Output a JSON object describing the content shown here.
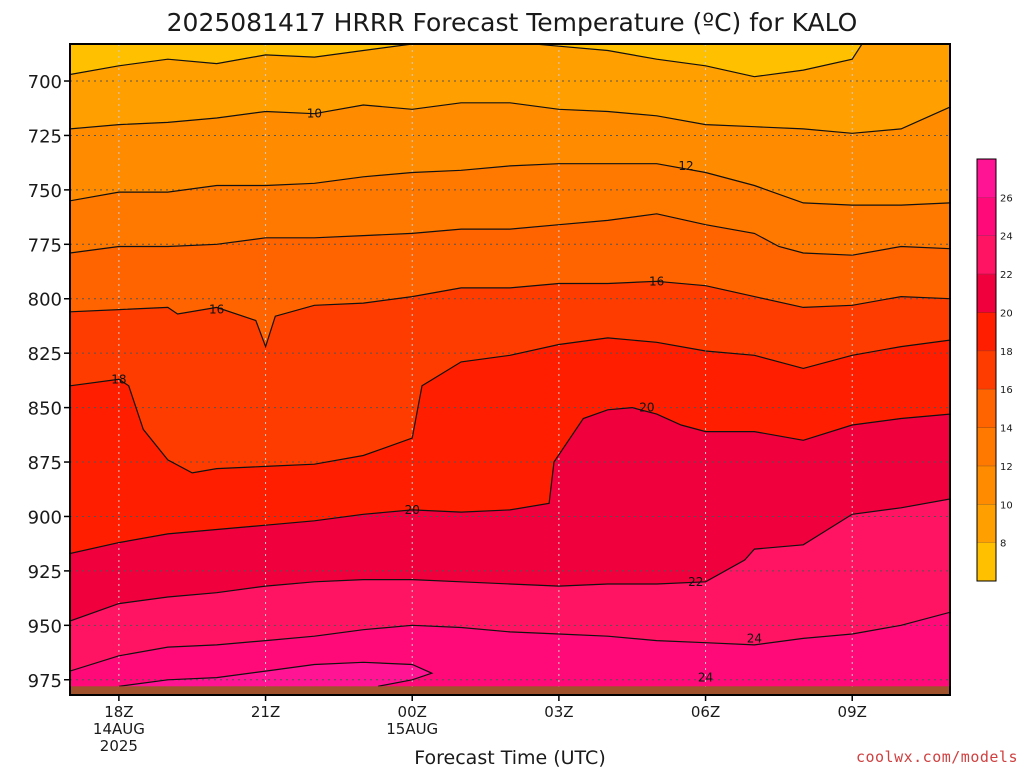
{
  "chart_data": {
    "type": "heatmap",
    "title": "2025081417 HRRR Forecast Temperature (ºC) for KALO",
    "xlabel": "Forecast Time (UTC)",
    "ylabel": "",
    "credit": "coolwx.com/models",
    "x_ticks": [
      {
        "hour": 18,
        "lines": [
          "18Z",
          "14AUG",
          "2025"
        ]
      },
      {
        "hour": 21,
        "lines": [
          "21Z"
        ]
      },
      {
        "hour": 24,
        "lines": [
          "00Z",
          "15AUG"
        ]
      },
      {
        "hour": 27,
        "lines": [
          "03Z"
        ]
      },
      {
        "hour": 30,
        "lines": [
          "06Z"
        ]
      },
      {
        "hour": 33,
        "lines": [
          "09Z"
        ]
      }
    ],
    "xlim": [
      17,
      35
    ],
    "y_ticks": [
      700,
      725,
      750,
      775,
      800,
      825,
      850,
      875,
      900,
      925,
      950,
      975
    ],
    "ylim": [
      982,
      683
    ],
    "colorbar": {
      "levels": [
        6,
        8,
        10,
        12,
        14,
        16,
        18,
        20,
        22,
        24,
        26,
        28
      ],
      "tick_labels": [
        "8",
        "10",
        "12",
        "14",
        "16",
        "18",
        "20",
        "22",
        "24",
        "26"
      ],
      "colors": [
        "#ffc000",
        "#ffa000",
        "#ff8c00",
        "#ff7800",
        "#ff6400",
        "#ff3c00",
        "#ff1e00",
        "#f0003c",
        "#ff1464",
        "#ff0a78",
        "#ff1493"
      ]
    },
    "fill_colors": [
      "#ffc000",
      "#ffa000",
      "#ff8c00",
      "#ff7800",
      "#ff6400",
      "#ff3c00",
      "#ff1e00",
      "#f0003c",
      "#ff1464",
      "#ff0a78",
      "#ff1493"
    ],
    "ground_color": "#a0522d",
    "surface_pressure": 978,
    "contours": [
      {
        "level": 8,
        "points": [
          [
            17,
            697
          ],
          [
            18,
            693
          ],
          [
            19,
            690
          ],
          [
            20,
            692
          ],
          [
            21,
            688
          ],
          [
            22,
            689
          ],
          [
            23,
            686
          ],
          [
            24,
            683
          ],
          [
            26,
            682
          ],
          [
            27,
            684
          ],
          [
            28,
            686
          ],
          [
            29,
            690
          ],
          [
            30,
            693
          ],
          [
            31,
            698
          ],
          [
            32,
            695
          ],
          [
            33,
            690
          ],
          [
            33.2,
            683
          ]
        ]
      },
      {
        "level": 10,
        "points": [
          [
            17,
            722
          ],
          [
            18,
            720
          ],
          [
            19,
            719
          ],
          [
            20,
            717
          ],
          [
            21,
            714
          ],
          [
            22,
            715
          ],
          [
            23,
            711
          ],
          [
            24,
            713
          ],
          [
            25,
            710
          ],
          [
            26,
            710
          ],
          [
            27,
            713
          ],
          [
            28,
            714
          ],
          [
            29,
            716
          ],
          [
            30,
            720
          ],
          [
            31,
            721
          ],
          [
            32,
            722
          ],
          [
            33,
            724
          ],
          [
            34,
            722
          ],
          [
            35,
            712
          ]
        ]
      },
      {
        "level": 12,
        "points": [
          [
            17,
            755
          ],
          [
            18,
            751
          ],
          [
            19,
            751
          ],
          [
            20,
            748
          ],
          [
            21,
            748
          ],
          [
            22,
            747
          ],
          [
            23,
            744
          ],
          [
            24,
            742
          ],
          [
            25,
            741
          ],
          [
            26,
            739
          ],
          [
            27,
            738
          ],
          [
            28,
            738
          ],
          [
            29,
            738
          ],
          [
            30,
            742
          ],
          [
            31,
            748
          ],
          [
            32,
            756
          ],
          [
            33,
            757
          ],
          [
            34,
            757
          ],
          [
            35,
            756
          ]
        ]
      },
      {
        "level": 14,
        "points": [
          [
            17,
            779
          ],
          [
            18,
            776
          ],
          [
            19,
            776
          ],
          [
            20,
            775
          ],
          [
            21,
            772
          ],
          [
            22,
            772
          ],
          [
            23,
            771
          ],
          [
            24,
            770
          ],
          [
            25,
            768
          ],
          [
            26,
            768
          ],
          [
            27,
            766
          ],
          [
            28,
            764
          ],
          [
            29,
            761
          ],
          [
            30,
            766
          ],
          [
            31,
            770
          ],
          [
            31.5,
            776
          ],
          [
            32,
            779
          ],
          [
            33,
            780
          ],
          [
            34,
            776
          ],
          [
            35,
            777
          ]
        ]
      },
      {
        "level": 16,
        "points": [
          [
            17,
            806
          ],
          [
            18,
            805
          ],
          [
            19,
            804
          ],
          [
            19.2,
            807
          ],
          [
            20,
            804
          ],
          [
            20.8,
            810
          ],
          [
            21,
            822
          ],
          [
            21.2,
            808
          ],
          [
            22,
            803
          ],
          [
            23,
            802
          ],
          [
            24,
            799
          ],
          [
            25,
            795
          ],
          [
            26,
            795
          ],
          [
            27,
            793
          ],
          [
            28,
            793
          ],
          [
            29,
            792
          ],
          [
            30,
            794
          ],
          [
            31,
            799
          ],
          [
            32,
            804
          ],
          [
            33,
            803
          ],
          [
            34,
            799
          ],
          [
            35,
            800
          ]
        ]
      },
      {
        "level": 18,
        "points": [
          [
            17,
            840
          ],
          [
            18,
            837
          ],
          [
            18.2,
            840
          ],
          [
            18.5,
            860
          ],
          [
            19,
            874
          ],
          [
            19.5,
            880
          ],
          [
            20,
            878
          ],
          [
            21,
            877
          ],
          [
            22,
            876
          ],
          [
            23,
            872
          ],
          [
            24,
            864
          ],
          [
            24.2,
            840
          ],
          [
            25,
            829
          ],
          [
            26,
            826
          ],
          [
            27,
            821
          ],
          [
            28,
            818
          ],
          [
            29,
            820
          ],
          [
            30,
            824
          ],
          [
            31,
            826
          ],
          [
            32,
            832
          ],
          [
            33,
            826
          ],
          [
            34,
            822
          ],
          [
            35,
            819
          ]
        ]
      },
      {
        "level": 20,
        "points": [
          [
            17,
            917
          ],
          [
            18,
            912
          ],
          [
            19,
            908
          ],
          [
            20,
            906
          ],
          [
            21,
            904
          ],
          [
            22,
            902
          ],
          [
            23,
            899
          ],
          [
            24,
            897
          ],
          [
            25,
            898
          ],
          [
            26,
            897
          ],
          [
            26.8,
            894
          ],
          [
            26.9,
            875
          ],
          [
            27.5,
            855
          ],
          [
            28,
            851
          ],
          [
            28.5,
            850
          ],
          [
            29,
            853
          ],
          [
            29.5,
            858
          ],
          [
            30,
            861
          ],
          [
            31,
            861
          ],
          [
            32,
            865
          ],
          [
            33,
            858
          ],
          [
            34,
            855
          ],
          [
            35,
            853
          ]
        ]
      },
      {
        "level": 22,
        "points": [
          [
            17,
            948
          ],
          [
            18,
            940
          ],
          [
            19,
            937
          ],
          [
            20,
            935
          ],
          [
            21,
            932
          ],
          [
            22,
            930
          ],
          [
            23,
            929
          ],
          [
            24,
            929
          ],
          [
            25,
            930
          ],
          [
            26,
            931
          ],
          [
            27,
            932
          ],
          [
            28,
            931
          ],
          [
            29,
            931
          ],
          [
            30,
            930
          ],
          [
            30.8,
            920
          ],
          [
            31,
            915
          ],
          [
            32,
            913
          ],
          [
            33,
            899
          ],
          [
            34,
            896
          ],
          [
            35,
            892
          ]
        ]
      },
      {
        "level": 24,
        "points": [
          [
            17,
            971
          ],
          [
            18,
            964
          ],
          [
            19,
            960
          ],
          [
            20,
            959
          ],
          [
            21,
            957
          ],
          [
            22,
            955
          ],
          [
            23,
            952
          ],
          [
            24,
            950
          ],
          [
            25,
            951
          ],
          [
            26,
            953
          ],
          [
            27,
            954
          ],
          [
            28,
            955
          ],
          [
            29,
            957
          ],
          [
            30,
            958
          ],
          [
            31,
            959
          ],
          [
            32,
            956
          ],
          [
            33,
            954
          ],
          [
            34,
            950
          ],
          [
            35,
            944
          ]
        ]
      },
      {
        "level": 26,
        "points": [
          [
            18,
            978
          ],
          [
            19,
            975
          ],
          [
            20,
            974
          ],
          [
            21,
            971
          ],
          [
            22,
            968
          ],
          [
            23,
            967
          ],
          [
            24,
            968
          ],
          [
            24.4,
            972
          ],
          [
            24,
            975
          ],
          [
            23.3,
            978
          ]
        ]
      }
    ],
    "contour_labels": [
      {
        "text": "10",
        "x": 22,
        "y": 715
      },
      {
        "text": "12",
        "x": 29.6,
        "y": 739
      },
      {
        "text": "16",
        "x": 20,
        "y": 805
      },
      {
        "text": "16",
        "x": 29,
        "y": 792
      },
      {
        "text": "18",
        "x": 18,
        "y": 837
      },
      {
        "text": "20",
        "x": 24,
        "y": 897
      },
      {
        "text": "20",
        "x": 28.8,
        "y": 850
      },
      {
        "text": "22",
        "x": 29.8,
        "y": 930
      },
      {
        "text": "24",
        "x": 31,
        "y": 956
      },
      {
        "text": "24",
        "x": 30,
        "y": 974
      }
    ]
  }
}
